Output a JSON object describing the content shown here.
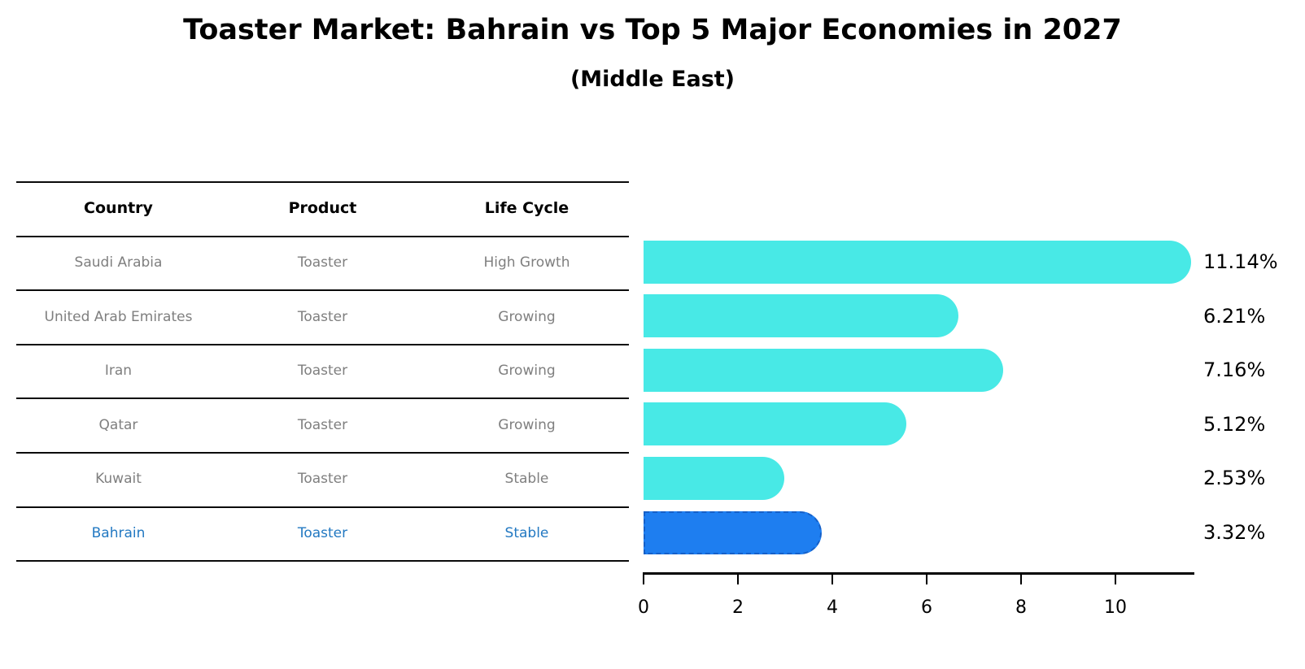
{
  "chart_data": {
    "type": "bar",
    "orientation": "horizontal",
    "title": "Toaster Market: Bahrain vs Top 5 Major Economies in 2027",
    "subtitle": "(Middle East)",
    "xlabel": "",
    "ylabel": "",
    "categories": [
      "Saudi Arabia",
      "United Arab Emirates",
      "Iran",
      "Qatar",
      "Kuwait",
      "Bahrain"
    ],
    "values": [
      11.14,
      6.21,
      7.16,
      5.12,
      2.53,
      3.32
    ],
    "value_labels": [
      "11.14%",
      "6.21%",
      "7.16%",
      "5.12%",
      "2.53%",
      "3.32%"
    ],
    "x_ticks": [
      0,
      2,
      4,
      6,
      8,
      10
    ],
    "xlim": [
      0,
      11.7
    ],
    "grid": false,
    "legend_position": "none",
    "highlight_category": "Bahrain",
    "bar_color": "#48e9e6",
    "highlight_bar_color": "#1e7ef0",
    "highlight_border_color": "#1560c8",
    "highlight_text_color": "#2379c2",
    "label_color": "#000000",
    "table_text_color": "#7f7f7f"
  },
  "table": {
    "headers": [
      "Country",
      "Product",
      "Life Cycle"
    ],
    "rows": [
      {
        "country": "Saudi Arabia",
        "product": "Toaster",
        "life_cycle": "High Growth",
        "highlighted": false
      },
      {
        "country": "United Arab Emirates",
        "product": "Toaster",
        "life_cycle": "Growing",
        "highlighted": false
      },
      {
        "country": "Iran",
        "product": "Toaster",
        "life_cycle": "Growing",
        "highlighted": false
      },
      {
        "country": "Qatar",
        "product": "Toaster",
        "life_cycle": "Growing",
        "highlighted": false
      },
      {
        "country": "Kuwait",
        "product": "Toaster",
        "life_cycle": "Stable",
        "highlighted": false
      },
      {
        "country": "Bahrain",
        "product": "Toaster",
        "life_cycle": "Stable",
        "highlighted": true
      }
    ]
  }
}
